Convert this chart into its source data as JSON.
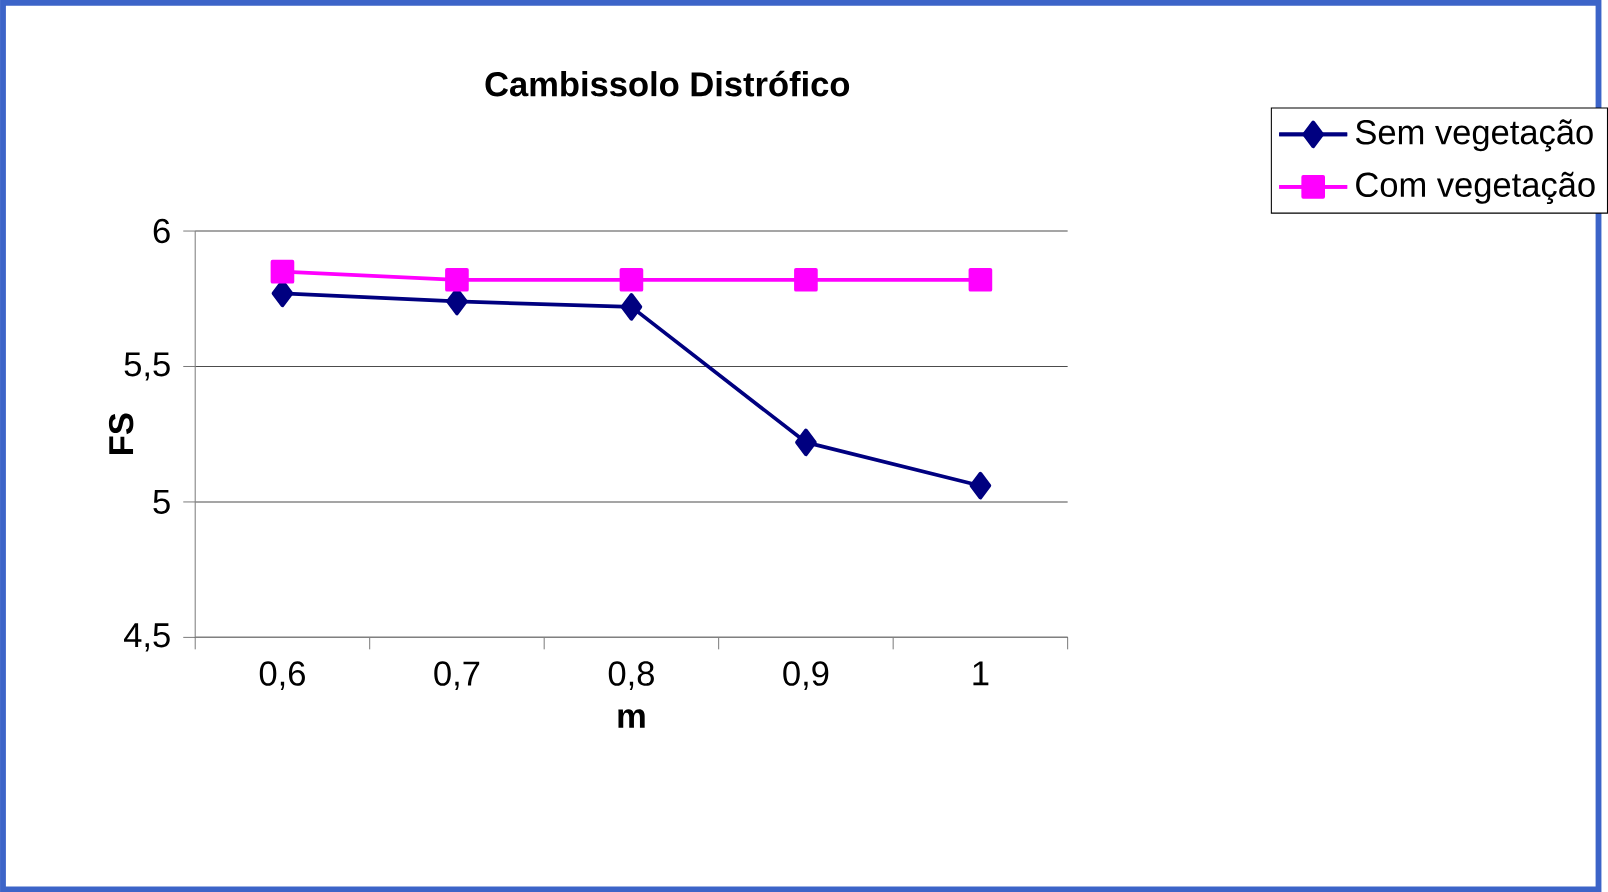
{
  "chart_data": {
    "type": "line",
    "title": "Cambissolo Distrófico",
    "xlabel": "m",
    "ylabel": "FS",
    "categories": [
      "0,6",
      "0,7",
      "0,8",
      "0,9",
      "1"
    ],
    "series": [
      {
        "name": "Sem vegetação",
        "color": "#000080",
        "marker": "diamond",
        "values": [
          5.77,
          5.74,
          5.72,
          5.22,
          5.06
        ]
      },
      {
        "name": "Com vegetação",
        "color": "#ff00ff",
        "marker": "square",
        "values": [
          5.85,
          5.82,
          5.82,
          5.82,
          5.82
        ]
      }
    ],
    "ylim": [
      4.5,
      6
    ],
    "yticks": [
      {
        "value": 4.5,
        "label": "4,5"
      },
      5,
      {
        "value": 5.5,
        "label": "5,5"
      },
      6
    ],
    "grid": "y",
    "legend": "right",
    "line_style": "solid"
  }
}
